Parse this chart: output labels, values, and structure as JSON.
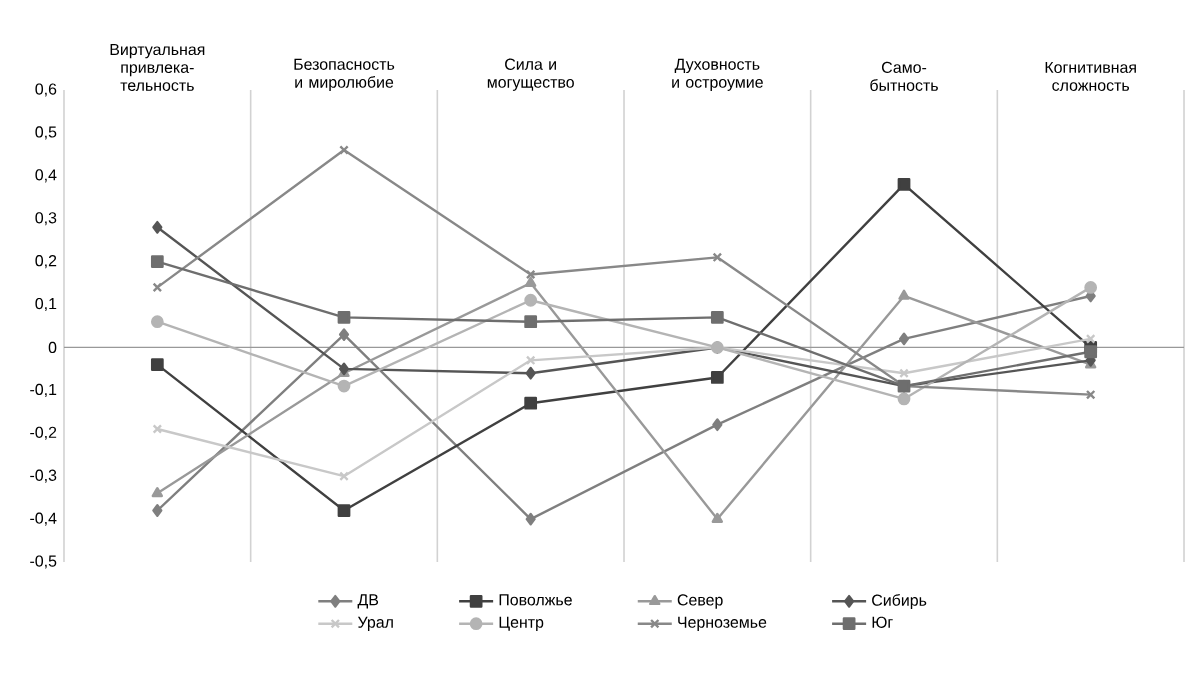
{
  "chart_data": {
    "type": "line",
    "categories": [
      "Виртуальная привлека-тельность",
      "Безопасность и миролюбие",
      "Сила и могущество",
      "Духовность и остроумие",
      "Само-бытность",
      "Когнитивная сложность"
    ],
    "series": [
      {
        "name": "ДВ",
        "color": "#7f7f7f",
        "marker": "diamond",
        "values": [
          -0.38,
          0.03,
          -0.4,
          -0.18,
          0.02,
          0.12
        ]
      },
      {
        "name": "Поволжье",
        "color": "#404040",
        "marker": "square",
        "values": [
          -0.04,
          -0.38,
          -0.13,
          -0.07,
          0.38,
          0.0
        ]
      },
      {
        "name": "Север",
        "color": "#999999",
        "marker": "triangle",
        "values": [
          -0.34,
          -0.06,
          0.15,
          -0.4,
          0.12,
          -0.04
        ]
      },
      {
        "name": "Сибирь",
        "color": "#555555",
        "marker": "diamond",
        "values": [
          0.28,
          -0.05,
          -0.06,
          0.0,
          -0.09,
          -0.03
        ]
      },
      {
        "name": "Урал",
        "color": "#c8c8c8",
        "marker": "cross",
        "values": [
          -0.19,
          -0.3,
          -0.03,
          0.0,
          -0.06,
          0.02
        ]
      },
      {
        "name": "Центр",
        "color": "#b4b4b4",
        "marker": "circle",
        "values": [
          0.06,
          -0.09,
          0.11,
          0.0,
          -0.12,
          0.14
        ]
      },
      {
        "name": "Черноземье",
        "color": "#888888",
        "marker": "cross",
        "values": [
          0.14,
          0.46,
          0.17,
          0.21,
          -0.09,
          -0.11
        ]
      },
      {
        "name": "Юг",
        "color": "#6e6e6e",
        "marker": "square",
        "values": [
          0.2,
          0.07,
          0.06,
          0.07,
          -0.09,
          -0.01
        ]
      }
    ],
    "ylim": [
      -0.5,
      0.6
    ],
    "yticks": [
      {
        "value": -0.5,
        "label": "-0,5"
      },
      {
        "value": -0.4,
        "label": "-0,4"
      },
      {
        "value": -0.3,
        "label": "-0,3"
      },
      {
        "value": -0.2,
        "label": "-0,2"
      },
      {
        "value": -0.1,
        "label": "-0,1"
      },
      0,
      {
        "value": 0.1,
        "label": "0,1"
      },
      {
        "value": 0.2,
        "label": "0,2"
      },
      {
        "value": 0.3,
        "label": "0,3"
      },
      {
        "value": 0.4,
        "label": "0,4"
      },
      {
        "value": 0.5,
        "label": "0,5"
      },
      {
        "value": 0.6,
        "label": "0,6"
      }
    ],
    "grid": "x",
    "legend": "bottom",
    "line_style": "solid"
  }
}
